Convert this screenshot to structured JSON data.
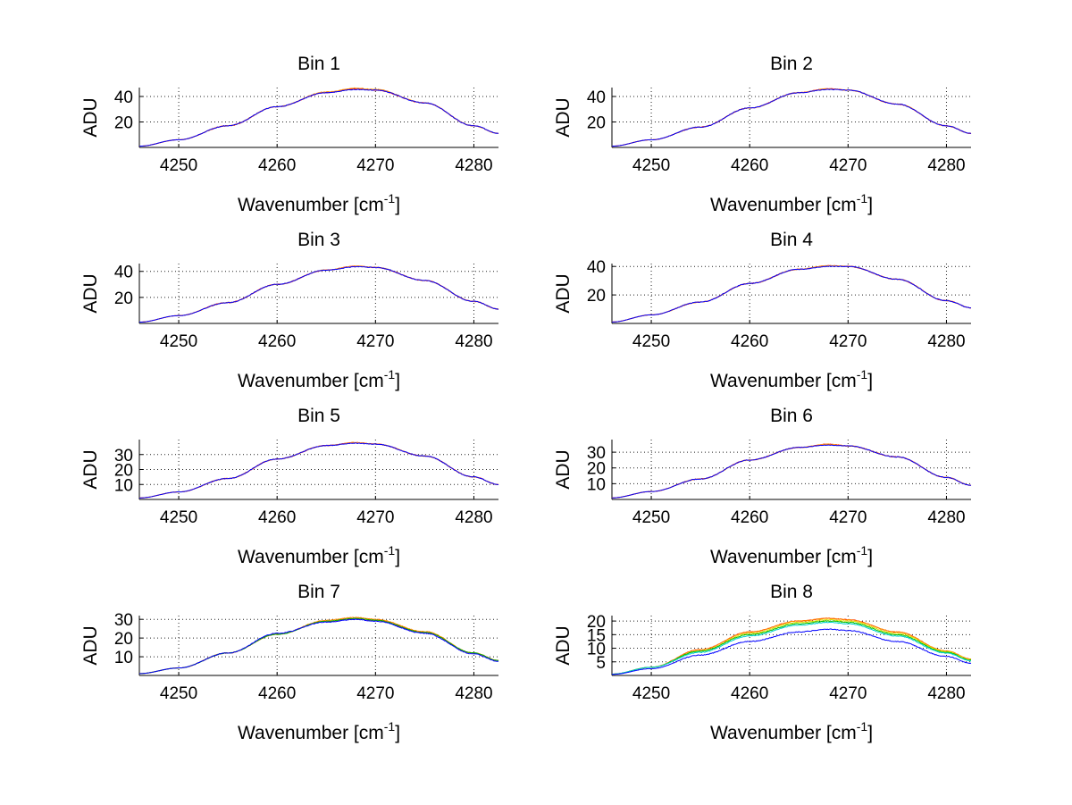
{
  "chart_data": [
    {
      "type": "line",
      "title": "Bin 1",
      "xlabel": "Wavenumber [cm",
      "xlabel_sup": "-1",
      "xlabel_suffix": "]",
      "ylabel": "ADU",
      "xlim": [
        4246,
        4282.5
      ],
      "ylim": [
        0,
        47
      ],
      "xticks": [
        4250,
        4260,
        4270,
        4280
      ],
      "yticks": [
        20,
        40
      ],
      "grid": true,
      "series": [
        {
          "name": "red",
          "color": "#ff0000",
          "x": [
            4246,
            4250,
            4255,
            4260,
            4265,
            4268,
            4270,
            4275,
            4280,
            4282.5
          ],
          "y": [
            1,
            6,
            17,
            32,
            43,
            46,
            45,
            35,
            17,
            11
          ]
        },
        {
          "name": "orange",
          "color": "#ff8c00",
          "x": [
            4246,
            4250,
            4255,
            4260,
            4265,
            4268,
            4270,
            4275,
            4280,
            4282.5
          ],
          "y": [
            1,
            6,
            17,
            32,
            43.5,
            46.5,
            45.5,
            35,
            17,
            11
          ]
        },
        {
          "name": "blue",
          "color": "#0000ff",
          "x": [
            4246,
            4250,
            4255,
            4260,
            4265,
            4268,
            4270,
            4275,
            4280,
            4282.5
          ],
          "y": [
            1,
            6,
            17,
            32,
            43,
            45.5,
            45,
            35,
            17,
            11
          ]
        }
      ]
    },
    {
      "type": "line",
      "title": "Bin 2",
      "xlabel": "Wavenumber [cm",
      "xlabel_sup": "-1",
      "xlabel_suffix": "]",
      "ylabel": "ADU",
      "xlim": [
        4246,
        4282.5
      ],
      "ylim": [
        0,
        47
      ],
      "xticks": [
        4250,
        4260,
        4270,
        4280
      ],
      "yticks": [
        20,
        40
      ],
      "grid": true,
      "series": [
        {
          "name": "red",
          "color": "#ff0000",
          "x": [
            4246,
            4250,
            4255,
            4260,
            4265,
            4268,
            4270,
            4275,
            4280,
            4282.5
          ],
          "y": [
            1,
            6,
            16,
            31,
            43,
            46,
            45,
            34,
            17,
            11
          ]
        },
        {
          "name": "orange",
          "color": "#ff8c00",
          "x": [
            4246,
            4250,
            4255,
            4260,
            4265,
            4268,
            4270,
            4275,
            4280,
            4282.5
          ],
          "y": [
            1,
            6,
            16,
            31,
            43,
            46,
            45,
            34,
            17,
            11
          ]
        },
        {
          "name": "blue",
          "color": "#0000ff",
          "x": [
            4246,
            4250,
            4255,
            4260,
            4265,
            4268,
            4270,
            4275,
            4280,
            4282.5
          ],
          "y": [
            1,
            6,
            16,
            31,
            43,
            45.5,
            45,
            34,
            17,
            11
          ]
        }
      ]
    },
    {
      "type": "line",
      "title": "Bin 3",
      "xlabel": "Wavenumber [cm",
      "xlabel_sup": "-1",
      "xlabel_suffix": "]",
      "ylabel": "ADU",
      "xlim": [
        4246,
        4282.5
      ],
      "ylim": [
        0,
        46
      ],
      "xticks": [
        4250,
        4260,
        4270,
        4280
      ],
      "yticks": [
        20,
        40
      ],
      "grid": true,
      "series": [
        {
          "name": "red",
          "color": "#ff0000",
          "x": [
            4246,
            4250,
            4255,
            4260,
            4265,
            4268,
            4270,
            4275,
            4280,
            4282.5
          ],
          "y": [
            1,
            6,
            16,
            30,
            41,
            44,
            43,
            33,
            17,
            11
          ]
        },
        {
          "name": "orange",
          "color": "#ff8c00",
          "x": [
            4246,
            4250,
            4255,
            4260,
            4265,
            4268,
            4270,
            4275,
            4280,
            4282.5
          ],
          "y": [
            1,
            6,
            16,
            30,
            41,
            44,
            43,
            33,
            17,
            11
          ]
        },
        {
          "name": "blue",
          "color": "#0000ff",
          "x": [
            4246,
            4250,
            4255,
            4260,
            4265,
            4268,
            4270,
            4275,
            4280,
            4282.5
          ],
          "y": [
            1,
            6,
            16,
            30,
            41,
            43.5,
            43,
            33,
            17,
            11
          ]
        }
      ]
    },
    {
      "type": "line",
      "title": "Bin 4",
      "xlabel": "Wavenumber [cm",
      "xlabel_sup": "-1",
      "xlabel_suffix": "]",
      "ylabel": "ADU",
      "xlim": [
        4246,
        4282.5
      ],
      "ylim": [
        0,
        42
      ],
      "xticks": [
        4250,
        4260,
        4270,
        4280
      ],
      "yticks": [
        20,
        40
      ],
      "grid": true,
      "series": [
        {
          "name": "red",
          "color": "#ff0000",
          "x": [
            4246,
            4250,
            4255,
            4260,
            4265,
            4268,
            4270,
            4275,
            4280,
            4282.5
          ],
          "y": [
            1,
            6,
            15,
            28,
            38,
            40.5,
            40,
            31,
            16,
            11
          ]
        },
        {
          "name": "orange",
          "color": "#ff8c00",
          "x": [
            4246,
            4250,
            4255,
            4260,
            4265,
            4268,
            4270,
            4275,
            4280,
            4282.5
          ],
          "y": [
            1,
            6,
            15,
            28,
            38,
            40.5,
            40,
            31,
            16,
            11
          ]
        },
        {
          "name": "blue",
          "color": "#0000ff",
          "x": [
            4246,
            4250,
            4255,
            4260,
            4265,
            4268,
            4270,
            4275,
            4280,
            4282.5
          ],
          "y": [
            1,
            6,
            15,
            28,
            38,
            40,
            40,
            31,
            16,
            11
          ]
        }
      ]
    },
    {
      "type": "line",
      "title": "Bin 5",
      "xlabel": "Wavenumber [cm",
      "xlabel_sup": "-1",
      "xlabel_suffix": "]",
      "ylabel": "ADU",
      "xlim": [
        4246,
        4282.5
      ],
      "ylim": [
        0,
        40
      ],
      "xticks": [
        4250,
        4260,
        4270,
        4280
      ],
      "yticks": [
        10,
        20,
        30
      ],
      "grid": true,
      "series": [
        {
          "name": "red",
          "color": "#ff0000",
          "x": [
            4246,
            4250,
            4255,
            4260,
            4265,
            4268,
            4270,
            4275,
            4280,
            4282.5
          ],
          "y": [
            1,
            5,
            14,
            27,
            36,
            38,
            37,
            29,
            15,
            10
          ]
        },
        {
          "name": "orange",
          "color": "#ff8c00",
          "x": [
            4246,
            4250,
            4255,
            4260,
            4265,
            4268,
            4270,
            4275,
            4280,
            4282.5
          ],
          "y": [
            1,
            5,
            14,
            27,
            36,
            38,
            37,
            29,
            15,
            10
          ]
        },
        {
          "name": "blue",
          "color": "#0000ff",
          "x": [
            4246,
            4250,
            4255,
            4260,
            4265,
            4268,
            4270,
            4275,
            4280,
            4282.5
          ],
          "y": [
            1,
            5,
            14,
            27,
            36,
            37.5,
            37,
            29,
            15,
            10
          ]
        }
      ]
    },
    {
      "type": "line",
      "title": "Bin 6",
      "xlabel": "Wavenumber [cm",
      "xlabel_sup": "-1",
      "xlabel_suffix": "]",
      "ylabel": "ADU",
      "xlim": [
        4246,
        4282.5
      ],
      "ylim": [
        0,
        38
      ],
      "xticks": [
        4250,
        4260,
        4270,
        4280
      ],
      "yticks": [
        10,
        20,
        30
      ],
      "grid": true,
      "series": [
        {
          "name": "red",
          "color": "#ff0000",
          "x": [
            4246,
            4250,
            4255,
            4260,
            4265,
            4268,
            4270,
            4275,
            4280,
            4282.5
          ],
          "y": [
            1,
            5,
            13,
            25,
            33,
            35,
            34,
            27,
            14,
            9
          ]
        },
        {
          "name": "orange",
          "color": "#ff8c00",
          "x": [
            4246,
            4250,
            4255,
            4260,
            4265,
            4268,
            4270,
            4275,
            4280,
            4282.5
          ],
          "y": [
            1,
            5,
            13,
            25,
            33,
            35,
            34,
            27,
            14,
            9
          ]
        },
        {
          "name": "blue",
          "color": "#0000ff",
          "x": [
            4246,
            4250,
            4255,
            4260,
            4265,
            4268,
            4270,
            4275,
            4280,
            4282.5
          ],
          "y": [
            1,
            5,
            13,
            25,
            33,
            34.5,
            34,
            27,
            14,
            9
          ]
        }
      ]
    },
    {
      "type": "line",
      "title": "Bin 7",
      "xlabel": "Wavenumber [cm",
      "xlabel_sup": "-1",
      "xlabel_suffix": "]",
      "ylabel": "ADU",
      "xlim": [
        4246,
        4282.5
      ],
      "ylim": [
        0,
        32
      ],
      "xticks": [
        4250,
        4260,
        4270,
        4280
      ],
      "yticks": [
        10,
        20,
        30
      ],
      "grid": true,
      "series": [
        {
          "name": "red",
          "color": "#ff0000",
          "x": [
            4246,
            4250,
            4255,
            4260,
            4265,
            4268,
            4270,
            4275,
            4280,
            4282.5
          ],
          "y": [
            1,
            4,
            12,
            22,
            29,
            30.5,
            29.5,
            23,
            12,
            8
          ]
        },
        {
          "name": "orange",
          "color": "#ff8c00",
          "x": [
            4246,
            4250,
            4255,
            4260,
            4265,
            4268,
            4270,
            4275,
            4280,
            4282.5
          ],
          "y": [
            1,
            4,
            12,
            22,
            29.5,
            31,
            30,
            23.5,
            12,
            8
          ]
        },
        {
          "name": "green",
          "color": "#00b000",
          "x": [
            4246,
            4250,
            4255,
            4260,
            4265,
            4268,
            4270,
            4275,
            4280,
            4282.5
          ],
          "y": [
            1,
            4,
            12,
            22,
            29,
            30.5,
            29.5,
            23,
            12,
            8
          ]
        },
        {
          "name": "blue",
          "color": "#0000ff",
          "x": [
            4246,
            4250,
            4255,
            4260,
            4265,
            4268,
            4270,
            4275,
            4280,
            4282.5
          ],
          "y": [
            1,
            4,
            12,
            22.5,
            28.5,
            30,
            29,
            22.5,
            11.5,
            7.5
          ]
        }
      ]
    },
    {
      "type": "line",
      "title": "Bin 8",
      "xlabel": "Wavenumber [cm",
      "xlabel_sup": "-1",
      "xlabel_suffix": "]",
      "ylabel": "ADU",
      "xlim": [
        4246,
        4282.5
      ],
      "ylim": [
        0,
        22
      ],
      "xticks": [
        4250,
        4260,
        4270,
        4280
      ],
      "yticks": [
        5,
        10,
        15,
        20
      ],
      "grid": true,
      "series": [
        {
          "name": "red",
          "color": "#ff0000",
          "x": [
            4246,
            4250,
            4255,
            4260,
            4265,
            4268,
            4270,
            4275,
            4280,
            4282.5
          ],
          "y": [
            0.5,
            3,
            9.5,
            16,
            20,
            21,
            20.5,
            16,
            9,
            6
          ]
        },
        {
          "name": "orange",
          "color": "#ff8c00",
          "x": [
            4246,
            4250,
            4255,
            4260,
            4265,
            4268,
            4270,
            4275,
            4280,
            4282.5
          ],
          "y": [
            0.5,
            3,
            9.5,
            16,
            20,
            21,
            20.5,
            16,
            9,
            6
          ]
        },
        {
          "name": "yellow",
          "color": "#e0e000",
          "x": [
            4246,
            4250,
            4255,
            4260,
            4265,
            4268,
            4270,
            4275,
            4280,
            4282.5
          ],
          "y": [
            0.5,
            3,
            9,
            15.5,
            19.5,
            20.5,
            20,
            15.5,
            8.8,
            5.8
          ]
        },
        {
          "name": "green",
          "color": "#00c000",
          "x": [
            4246,
            4250,
            4255,
            4260,
            4265,
            4268,
            4270,
            4275,
            4280,
            4282.5
          ],
          "y": [
            0.5,
            3,
            9,
            15,
            19,
            20,
            19.5,
            15,
            8.5,
            5.6
          ]
        },
        {
          "name": "cyan",
          "color": "#00d0d0",
          "x": [
            4246,
            4250,
            4255,
            4260,
            4265,
            4268,
            4270,
            4275,
            4280,
            4282.5
          ],
          "y": [
            0.5,
            3,
            8.5,
            14.5,
            18.5,
            19.5,
            19,
            14.5,
            8.2,
            5.4
          ]
        },
        {
          "name": "blue",
          "color": "#0000ff",
          "x": [
            4246,
            4250,
            4255,
            4260,
            4265,
            4268,
            4270,
            4275,
            4280,
            4282.5
          ],
          "y": [
            0.4,
            2.5,
            7.5,
            12.5,
            16,
            17,
            16.5,
            12.5,
            7,
            4.5
          ]
        }
      ]
    }
  ]
}
